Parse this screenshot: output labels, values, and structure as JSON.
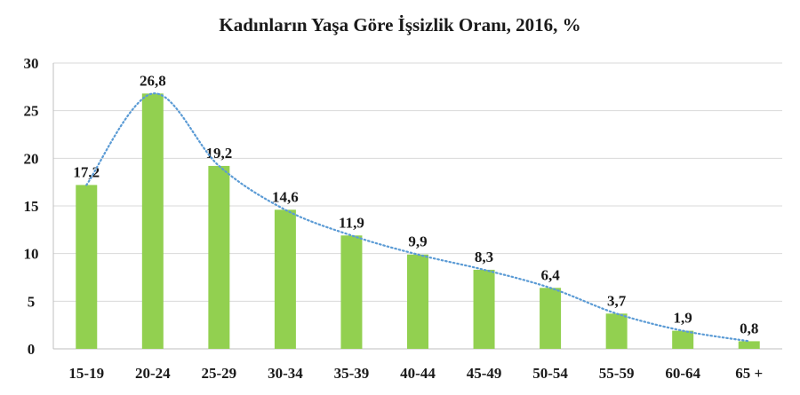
{
  "chart_data": {
    "type": "bar",
    "title": "Kadınların Yaşa Göre İşsizlik Oranı, 2016, %",
    "categories": [
      "15-19",
      "20-24",
      "25-29",
      "30-34",
      "35-39",
      "40-44",
      "45-49",
      "50-54",
      "55-59",
      "60-64",
      "65 +"
    ],
    "values": [
      17.2,
      26.8,
      19.2,
      14.6,
      11.9,
      9.9,
      8.3,
      6.4,
      3.7,
      1.9,
      0.8
    ],
    "value_labels": [
      "17,2",
      "26,8",
      "19,2",
      "14,6",
      "11,9",
      "9,9",
      "8,3",
      "6,4",
      "3,7",
      "1,9",
      "0,8"
    ],
    "yticks": [
      "0",
      "5",
      "10",
      "15",
      "20",
      "25",
      "30"
    ],
    "ylim": [
      0,
      30
    ],
    "xlabel": "",
    "ylabel": "",
    "grid": true,
    "trendline": "smoothed dotted line through bar tops",
    "colors": {
      "bar": "#92d050",
      "trend": "#5b9bd5",
      "grid": "#d9d9d9",
      "axis": "#bfbfbf"
    }
  }
}
